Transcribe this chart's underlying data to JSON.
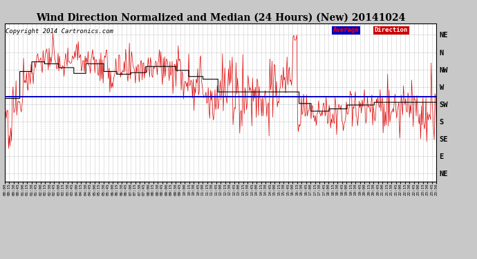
{
  "title": "Wind Direction Normalized and Median (24 Hours) (New) 20141024",
  "copyright": "Copyright 2014 Cartronics.com",
  "ytick_labels": [
    "NE",
    "N",
    "NW",
    "W",
    "SW",
    "S",
    "SE",
    "E",
    "NE"
  ],
  "ytick_values": [
    360,
    315,
    270,
    225,
    180,
    135,
    90,
    45,
    0
  ],
  "ylim": [
    -20,
    390
  ],
  "average_direction": 200,
  "background_color": "#c8c8c8",
  "plot_bg_color": "#ffffff",
  "grid_color": "#888888",
  "red_line_color": "#dd0000",
  "black_step_color": "#000000",
  "blue_line_color": "#0000cc",
  "title_fontsize": 10,
  "copyright_fontsize": 6.5
}
